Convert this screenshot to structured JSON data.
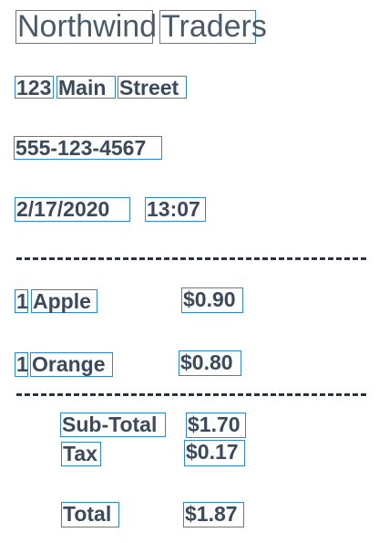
{
  "store": {
    "name_words": [
      "Northwind",
      "Traders"
    ],
    "address_words": [
      "123",
      "Main",
      "Street"
    ],
    "phone": "555-123-4567",
    "date": "2/17/2020",
    "time": "13:07"
  },
  "items": [
    {
      "qty": "1",
      "name": "Apple",
      "price": "$0.90"
    },
    {
      "qty": "1",
      "name": "Orange",
      "price": "$0.80"
    }
  ],
  "totals": {
    "subtotal_label": "Sub-Total",
    "subtotal_value": "$1.70",
    "tax_label": "Tax",
    "tax_value": "$0.17",
    "total_label": "Total",
    "total_value": "$1.87"
  },
  "colors": {
    "box_outline": "#2f86d1",
    "text": "#3a4a5c"
  }
}
